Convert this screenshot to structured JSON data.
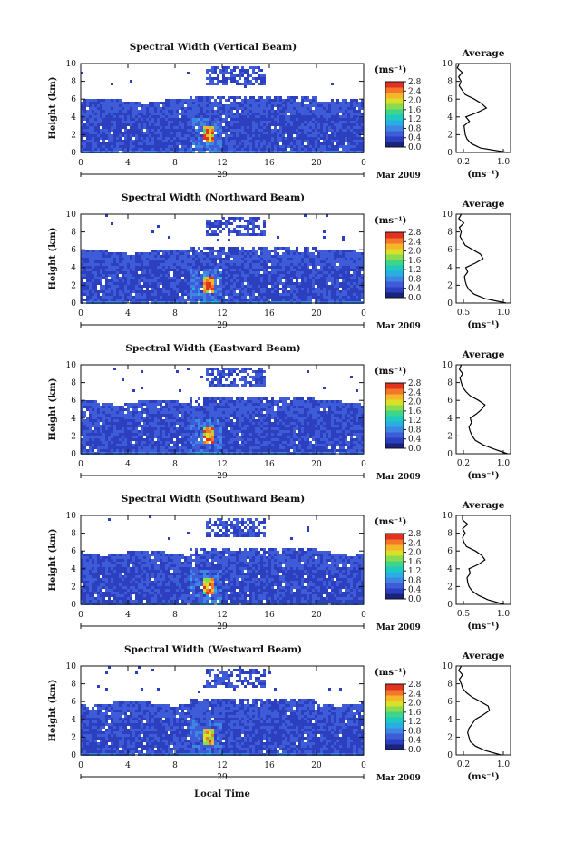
{
  "colors": {
    "colorscale": [
      "#1a237e",
      "#2c3fbf",
      "#3e5bd8",
      "#3f86e4",
      "#28aee2",
      "#20c9c0",
      "#3ed48a",
      "#8adc4e",
      "#d8e029",
      "#f7b52a",
      "#f2772a",
      "#e3321f"
    ],
    "axis": "#111111",
    "line": "#000000"
  },
  "xlabel_bottom": "Local Time",
  "date_label": "Mar 2009",
  "day_label": "29",
  "colorbar_unit": "(ms⁻¹)",
  "avg_unit": "(ms⁻¹)",
  "avg_title": "Average",
  "chart_data": [
    {
      "type": "heatmap",
      "title": "Spectral Width (Vertical Beam)",
      "ylabel": "Height (km)",
      "xticks": [
        "0",
        "4",
        "8",
        "12",
        "16",
        "20",
        "0"
      ],
      "yticks": [
        "0",
        "2",
        "4",
        "6",
        "8",
        "10"
      ],
      "xlim": [
        0,
        24
      ],
      "ylim": [
        0,
        10
      ],
      "colorbar": {
        "ticks": [
          "0.0",
          "0.4",
          "0.8",
          "1.2",
          "1.6",
          "2.0",
          "2.4",
          "2.8"
        ],
        "range": [
          0,
          2.8
        ]
      },
      "average": {
        "title": "Average",
        "xticks": [
          "0.2",
          "1.0"
        ],
        "xlim": [
          0.2,
          1.1
        ],
        "heights": [
          0,
          0.5,
          1,
          1.5,
          2,
          2.5,
          3,
          3.5,
          4,
          4.5,
          5,
          5.5,
          6,
          6.5,
          7,
          7.5,
          8,
          8.5,
          9,
          9.5,
          10
        ],
        "values": [
          1.05,
          0.6,
          0.45,
          0.38,
          0.35,
          0.34,
          0.33,
          0.42,
          0.36,
          0.55,
          0.7,
          0.62,
          0.5,
          0.35,
          0.3,
          0.25,
          0.28,
          0.24,
          0.3,
          0.22,
          0.25
        ]
      }
    },
    {
      "type": "heatmap",
      "title": "Spectral Width (Northward Beam)",
      "ylabel": "Height (km)",
      "xticks": [
        "0",
        "4",
        "8",
        "12",
        "16",
        "20",
        "0"
      ],
      "yticks": [
        "0",
        "2",
        "4",
        "6",
        "8",
        "10"
      ],
      "xlim": [
        0,
        24
      ],
      "ylim": [
        0,
        10
      ],
      "colorbar": {
        "ticks": [
          "0.0",
          "0.4",
          "0.8",
          "1.2",
          "1.6",
          "2.0",
          "2.4",
          "2.8"
        ],
        "range": [
          0,
          2.8
        ]
      },
      "average": {
        "title": "Average",
        "xticks": [
          "0.5",
          "1.0"
        ],
        "xlim": [
          0.2,
          1.05
        ],
        "heights": [
          0,
          0.5,
          1,
          1.5,
          2,
          2.5,
          3,
          3.5,
          4,
          4.5,
          5,
          5.5,
          6,
          6.5,
          7,
          7.5,
          8,
          8.5,
          9,
          9.5,
          10
        ],
        "values": [
          0.98,
          0.65,
          0.48,
          0.4,
          0.36,
          0.34,
          0.33,
          0.38,
          0.35,
          0.5,
          0.62,
          0.58,
          0.46,
          0.34,
          0.3,
          0.26,
          0.28,
          0.25,
          0.32,
          0.24,
          0.28
        ]
      }
    },
    {
      "type": "heatmap",
      "title": "Spectral Width (Eastward Beam)",
      "ylabel": "Height (km)",
      "xticks": [
        "0",
        "4",
        "8",
        "12",
        "16",
        "20",
        "0"
      ],
      "yticks": [
        "0",
        "2",
        "4",
        "6",
        "8",
        "10"
      ],
      "xlim": [
        0,
        24
      ],
      "ylim": [
        0,
        10
      ],
      "colorbar": {
        "ticks": [
          "0.0",
          "0.4",
          "0.8",
          "1.2",
          "1.6",
          "2.0",
          "2.4",
          "2.8"
        ],
        "range": [
          0,
          2.8
        ]
      },
      "average": {
        "title": "Average",
        "xticks": [
          "0.2",
          "1.0"
        ],
        "xlim": [
          0.2,
          1.05
        ],
        "heights": [
          0,
          0.5,
          1,
          1.5,
          2,
          2.5,
          3,
          3.5,
          4,
          4.5,
          5,
          5.5,
          6,
          6.5,
          7,
          7.5,
          8,
          8.5,
          9,
          9.5,
          10
        ],
        "values": [
          1.0,
          0.8,
          0.62,
          0.5,
          0.45,
          0.42,
          0.4,
          0.44,
          0.42,
          0.52,
          0.6,
          0.65,
          0.55,
          0.42,
          0.35,
          0.3,
          0.28,
          0.26,
          0.3,
          0.25,
          0.28
        ]
      }
    },
    {
      "type": "heatmap",
      "title": "Spectral Width (Southward Beam)",
      "ylabel": "Height (km)",
      "xticks": [
        "0",
        "4",
        "8",
        "12",
        "16",
        "20",
        "0"
      ],
      "yticks": [
        "0",
        "2",
        "4",
        "6",
        "8",
        "10"
      ],
      "xlim": [
        0,
        24
      ],
      "ylim": [
        0,
        10
      ],
      "colorbar": {
        "ticks": [
          "0.0",
          "0.4",
          "0.8",
          "1.2",
          "1.6",
          "2.0",
          "2.4",
          "2.8"
        ],
        "range": [
          0,
          2.8
        ]
      },
      "average": {
        "title": "Average",
        "xticks": [
          "0.5",
          "1.0"
        ],
        "xlim": [
          0.2,
          1.05
        ],
        "heights": [
          0,
          0.5,
          1,
          1.5,
          2,
          2.5,
          3,
          3.5,
          4,
          4.5,
          5,
          5.5,
          6,
          6.5,
          7,
          7.5,
          8,
          8.5,
          9,
          9.5,
          10
        ],
        "values": [
          0.95,
          0.7,
          0.55,
          0.45,
          0.4,
          0.38,
          0.37,
          0.42,
          0.4,
          0.55,
          0.65,
          0.6,
          0.5,
          0.36,
          0.32,
          0.3,
          0.34,
          0.3,
          0.38,
          0.3,
          0.3
        ]
      }
    },
    {
      "type": "heatmap",
      "title": "Spectral Width (Westward Beam)",
      "ylabel": "Height (km)",
      "xticks": [
        "0",
        "4",
        "8",
        "12",
        "16",
        "20",
        "0"
      ],
      "yticks": [
        "0",
        "2",
        "4",
        "6",
        "8",
        "10"
      ],
      "xlim": [
        0,
        24
      ],
      "ylim": [
        0,
        10
      ],
      "colorbar": {
        "ticks": [
          "0.0",
          "0.4",
          "0.8",
          "1.2",
          "1.6",
          "2.0",
          "2.4",
          "2.8"
        ],
        "range": [
          0,
          2.8
        ]
      },
      "average": {
        "title": "Average",
        "xticks": [
          "0.2",
          "1.0"
        ],
        "xlim": [
          0.2,
          1.05
        ],
        "heights": [
          0,
          0.5,
          1,
          1.5,
          2,
          2.5,
          3,
          3.5,
          4,
          4.5,
          5,
          5.5,
          6,
          6.5,
          7,
          7.5,
          8,
          8.5,
          9,
          9.5,
          10
        ],
        "values": [
          0.9,
          0.65,
          0.5,
          0.42,
          0.4,
          0.38,
          0.4,
          0.45,
          0.5,
          0.62,
          0.72,
          0.7,
          0.58,
          0.45,
          0.36,
          0.3,
          0.28,
          0.25,
          0.3,
          0.24,
          0.28
        ]
      }
    }
  ]
}
